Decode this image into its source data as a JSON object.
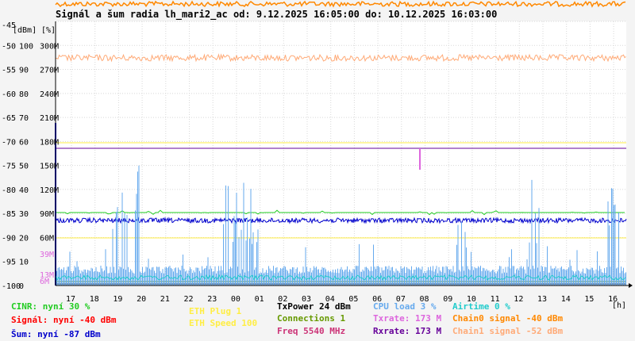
{
  "chart_data": {
    "type": "line",
    "title": "Signál a šum radia lh_mari2_ac od: 9.12.2025 16:05:00 do: 10.12.2025 16:03:00",
    "ylabel_left": "[dBm]",
    "ylabel_pct": "[%]",
    "xlabel": "[h]",
    "x_ticks": [
      "17",
      "18",
      "19",
      "20",
      "21",
      "22",
      "23",
      "00",
      "01",
      "02",
      "03",
      "04",
      "05",
      "06",
      "07",
      "08",
      "09",
      "10",
      "11",
      "12",
      "13",
      "14",
      "15",
      "16"
    ],
    "y_ticks_dbm": [
      "-45",
      "-50",
      "-55",
      "-60",
      "-65",
      "-70",
      "-75",
      "-80",
      "-85",
      "-90",
      "-95",
      "-100"
    ],
    "y_ticks_pct": [
      "100",
      "90",
      "80",
      "70",
      "60",
      "50",
      "40",
      "30",
      "20",
      "10",
      "0"
    ],
    "y_ticks_rate": [
      "300M",
      "270M",
      "240M",
      "210M",
      "180M",
      "150M",
      "120M",
      "90M",
      "60M",
      "39M",
      "13M",
      "6M"
    ],
    "ylim_dbm": [
      -100,
      -45
    ],
    "series": [
      {
        "name": "CINR",
        "color": "#22cc22",
        "approx_level_pct": 30
      },
      {
        "name": "Signál",
        "color": "#ff0000",
        "approx_level_dbm": -40
      },
      {
        "name": "Šum",
        "color": "#0000cc",
        "approx_level_dbm": -87
      },
      {
        "name": "TxPower",
        "color": "#000000",
        "level": 24
      },
      {
        "name": "Connections",
        "color": "#669900",
        "level": 1
      },
      {
        "name": "Freq",
        "color": "#cc3377",
        "level": 5540
      },
      {
        "name": "CPU load",
        "color": "#66aaee",
        "level_pct": 3
      },
      {
        "name": "Txrate",
        "color": "#dd66dd",
        "level_mbps": 173
      },
      {
        "name": "Rxrate",
        "color": "#660099",
        "level_mbps": 173
      },
      {
        "name": "Airtime",
        "color": "#22cccc",
        "level_pct": 0
      },
      {
        "name": "Chain0 signal",
        "color": "#ff8800",
        "level_dbm": -40
      },
      {
        "name": "Chain1 signal",
        "color": "#ffaa77",
        "approx_level_dbm": -52
      }
    ]
  },
  "legend": {
    "cinr": "CINR: nyní 30 %",
    "signal": "Signál: nyní -40 dBm",
    "noise": "Šum: nyní -87 dBm",
    "eth_plug": "ETH Plug 1",
    "eth_speed": "ETH Speed 100",
    "txpower": "TxPower 24 dBm",
    "connections": "Connections 1",
    "freq": "Freq 5540 MHz",
    "cpu": "CPU load 3 %",
    "txrate": "Txrate: 173 M",
    "rxrate": "Rxrate: 173 M",
    "airtime": "Airtime 0 %",
    "chain0": "Chain0 signal -40 dBm",
    "chain1": "Chain1 signal -52 dBm"
  },
  "colors": {
    "cinr": "#22cc22",
    "signal": "#ff0000",
    "noise": "#0000cc",
    "eth": "#ffee44",
    "txpower": "#000000",
    "connections": "#669900",
    "freq": "#cc3377",
    "cpu": "#66aaee",
    "txrate": "#dd66dd",
    "rxrate": "#660099",
    "airtime": "#22cccc",
    "chain0": "#ff8800",
    "chain1": "#ffaa77"
  }
}
